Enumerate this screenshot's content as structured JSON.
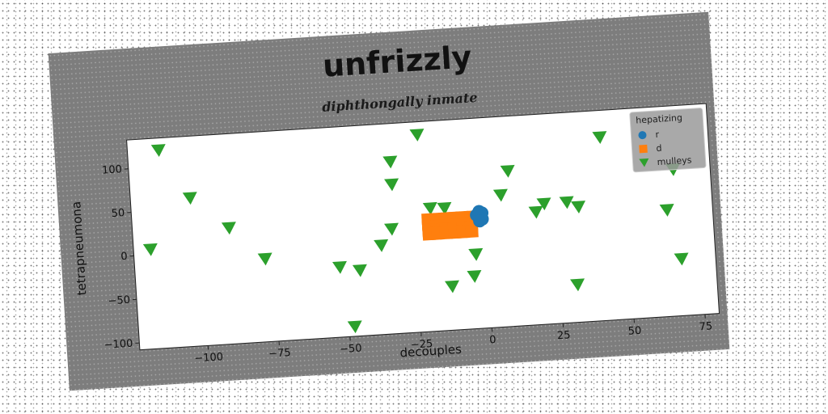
{
  "chart_data": {
    "type": "scatter",
    "title": "unfrizzly",
    "subtitle": "diphthongally inmate",
    "xlabel": "decouples",
    "ylabel": "tetrapneumona",
    "xlim": [
      -124,
      80
    ],
    "ylim": [
      -108,
      133
    ],
    "x_ticks": [
      -100,
      -75,
      -50,
      -25,
      0,
      25,
      50,
      75
    ],
    "y_ticks": [
      -100,
      -50,
      0,
      50,
      100
    ],
    "grid": false,
    "legend": {
      "title": "hepatizing",
      "position": "top-right"
    },
    "series": [
      {
        "name": "r",
        "marker": "circle",
        "color": "#1f77b4",
        "points": [
          [
            -2,
            26
          ],
          [
            -1,
            24
          ],
          [
            -2,
            20
          ],
          [
            -1,
            17
          ],
          [
            -3,
            22
          ],
          [
            -2,
            15
          ]
        ]
      },
      {
        "name": "d",
        "marker": "square",
        "color": "#ff7f0e",
        "points": [
          [
            -20,
            20
          ],
          [
            -17,
            20
          ],
          [
            -14,
            20
          ],
          [
            -11,
            20
          ],
          [
            -8,
            20
          ],
          [
            -5,
            20
          ],
          [
            -20,
            16
          ],
          [
            -17,
            16
          ],
          [
            -14,
            16
          ],
          [
            -11,
            16
          ],
          [
            -8,
            16
          ],
          [
            -5,
            16
          ],
          [
            -20,
            12
          ],
          [
            -17,
            12
          ],
          [
            -14,
            12
          ],
          [
            -11,
            12
          ],
          [
            -8,
            12
          ],
          [
            -5,
            12
          ],
          [
            -20,
            8
          ],
          [
            -17,
            8
          ],
          [
            -14,
            8
          ],
          [
            -11,
            8
          ],
          [
            -8,
            8
          ],
          [
            -5,
            8
          ],
          [
            -20,
            4
          ],
          [
            -17,
            4
          ],
          [
            -14,
            4
          ],
          [
            -11,
            4
          ],
          [
            -8,
            4
          ],
          [
            -5,
            4
          ]
        ]
      },
      {
        "name": "mulleys",
        "marker": "triangle-down",
        "color": "#2ca02c",
        "points": [
          [
            -113,
            119
          ],
          [
            -103,
            62
          ],
          [
            -118,
            6
          ],
          [
            -90,
            25
          ],
          [
            -78,
            -13
          ],
          [
            -52,
            -28
          ],
          [
            -45,
            -33
          ],
          [
            -48,
            -97
          ],
          [
            -37,
            -6
          ],
          [
            -33,
            12
          ],
          [
            -32,
            63
          ],
          [
            -32,
            89
          ],
          [
            -22,
            118
          ],
          [
            -19,
            33
          ],
          [
            -14,
            32
          ],
          [
            -13,
            -58
          ],
          [
            -5,
            -48
          ],
          [
            -4,
            -23
          ],
          [
            6,
            43
          ],
          [
            9,
            70
          ],
          [
            18,
            21
          ],
          [
            21,
            30
          ],
          [
            29,
            30
          ],
          [
            33,
            24
          ],
          [
            31,
            -65
          ],
          [
            42,
            102
          ],
          [
            64,
            14
          ],
          [
            67,
            60
          ],
          [
            68,
            -43
          ]
        ]
      }
    ]
  }
}
